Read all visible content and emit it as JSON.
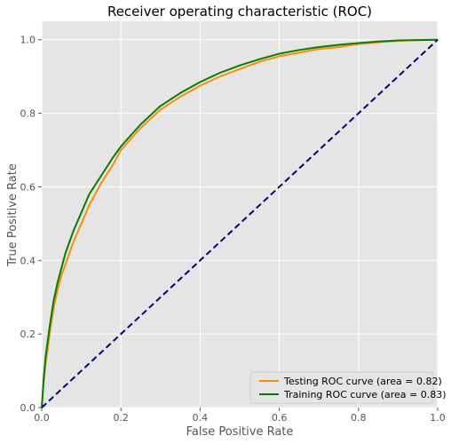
{
  "chart_data": {
    "type": "line",
    "title": "Receiver operating characteristic (ROC)",
    "xlabel": "False Positive Rate",
    "ylabel": "True Positive Rate",
    "xlim": [
      0,
      1
    ],
    "ylim": [
      0,
      1.05
    ],
    "xticks": [
      "0.0",
      "0.2",
      "0.4",
      "0.6",
      "0.8",
      "1.0"
    ],
    "yticks": [
      "0.0",
      "0.2",
      "0.4",
      "0.6",
      "0.8",
      "1.0"
    ],
    "grid": true,
    "legend_position": "lower-right",
    "series": [
      {
        "name": "Testing ROC curve (area = 0.82)",
        "color": "#ff8c00",
        "style": "solid",
        "x": [
          0,
          0.005,
          0.01,
          0.02,
          0.03,
          0.04,
          0.05,
          0.06,
          0.08,
          0.1,
          0.12,
          0.15,
          0.18,
          0.2,
          0.25,
          0.3,
          0.35,
          0.4,
          0.45,
          0.5,
          0.55,
          0.6,
          0.65,
          0.7,
          0.75,
          0.8,
          0.85,
          0.9,
          0.95,
          1.0
        ],
        "y": [
          0,
          0.07,
          0.12,
          0.2,
          0.27,
          0.32,
          0.36,
          0.39,
          0.45,
          0.5,
          0.55,
          0.61,
          0.66,
          0.7,
          0.76,
          0.81,
          0.845,
          0.875,
          0.9,
          0.92,
          0.94,
          0.955,
          0.965,
          0.975,
          0.98,
          0.988,
          0.993,
          0.997,
          0.999,
          1.0
        ]
      },
      {
        "name": "Training ROC curve (area = 0.83)",
        "color": "#008000",
        "style": "solid",
        "x": [
          0,
          0.005,
          0.01,
          0.02,
          0.03,
          0.04,
          0.05,
          0.06,
          0.08,
          0.1,
          0.12,
          0.15,
          0.18,
          0.2,
          0.25,
          0.3,
          0.35,
          0.4,
          0.45,
          0.5,
          0.55,
          0.6,
          0.65,
          0.7,
          0.75,
          0.8,
          0.85,
          0.9,
          0.95,
          1.0
        ],
        "y": [
          0,
          0.08,
          0.14,
          0.22,
          0.29,
          0.34,
          0.38,
          0.42,
          0.48,
          0.53,
          0.58,
          0.63,
          0.68,
          0.71,
          0.77,
          0.82,
          0.855,
          0.885,
          0.91,
          0.93,
          0.947,
          0.962,
          0.972,
          0.98,
          0.986,
          0.991,
          0.995,
          0.998,
          0.999,
          1.0
        ]
      },
      {
        "name": "",
        "color": "#000080",
        "style": "dashed",
        "x": [
          0,
          1
        ],
        "y": [
          0,
          1
        ]
      }
    ]
  }
}
